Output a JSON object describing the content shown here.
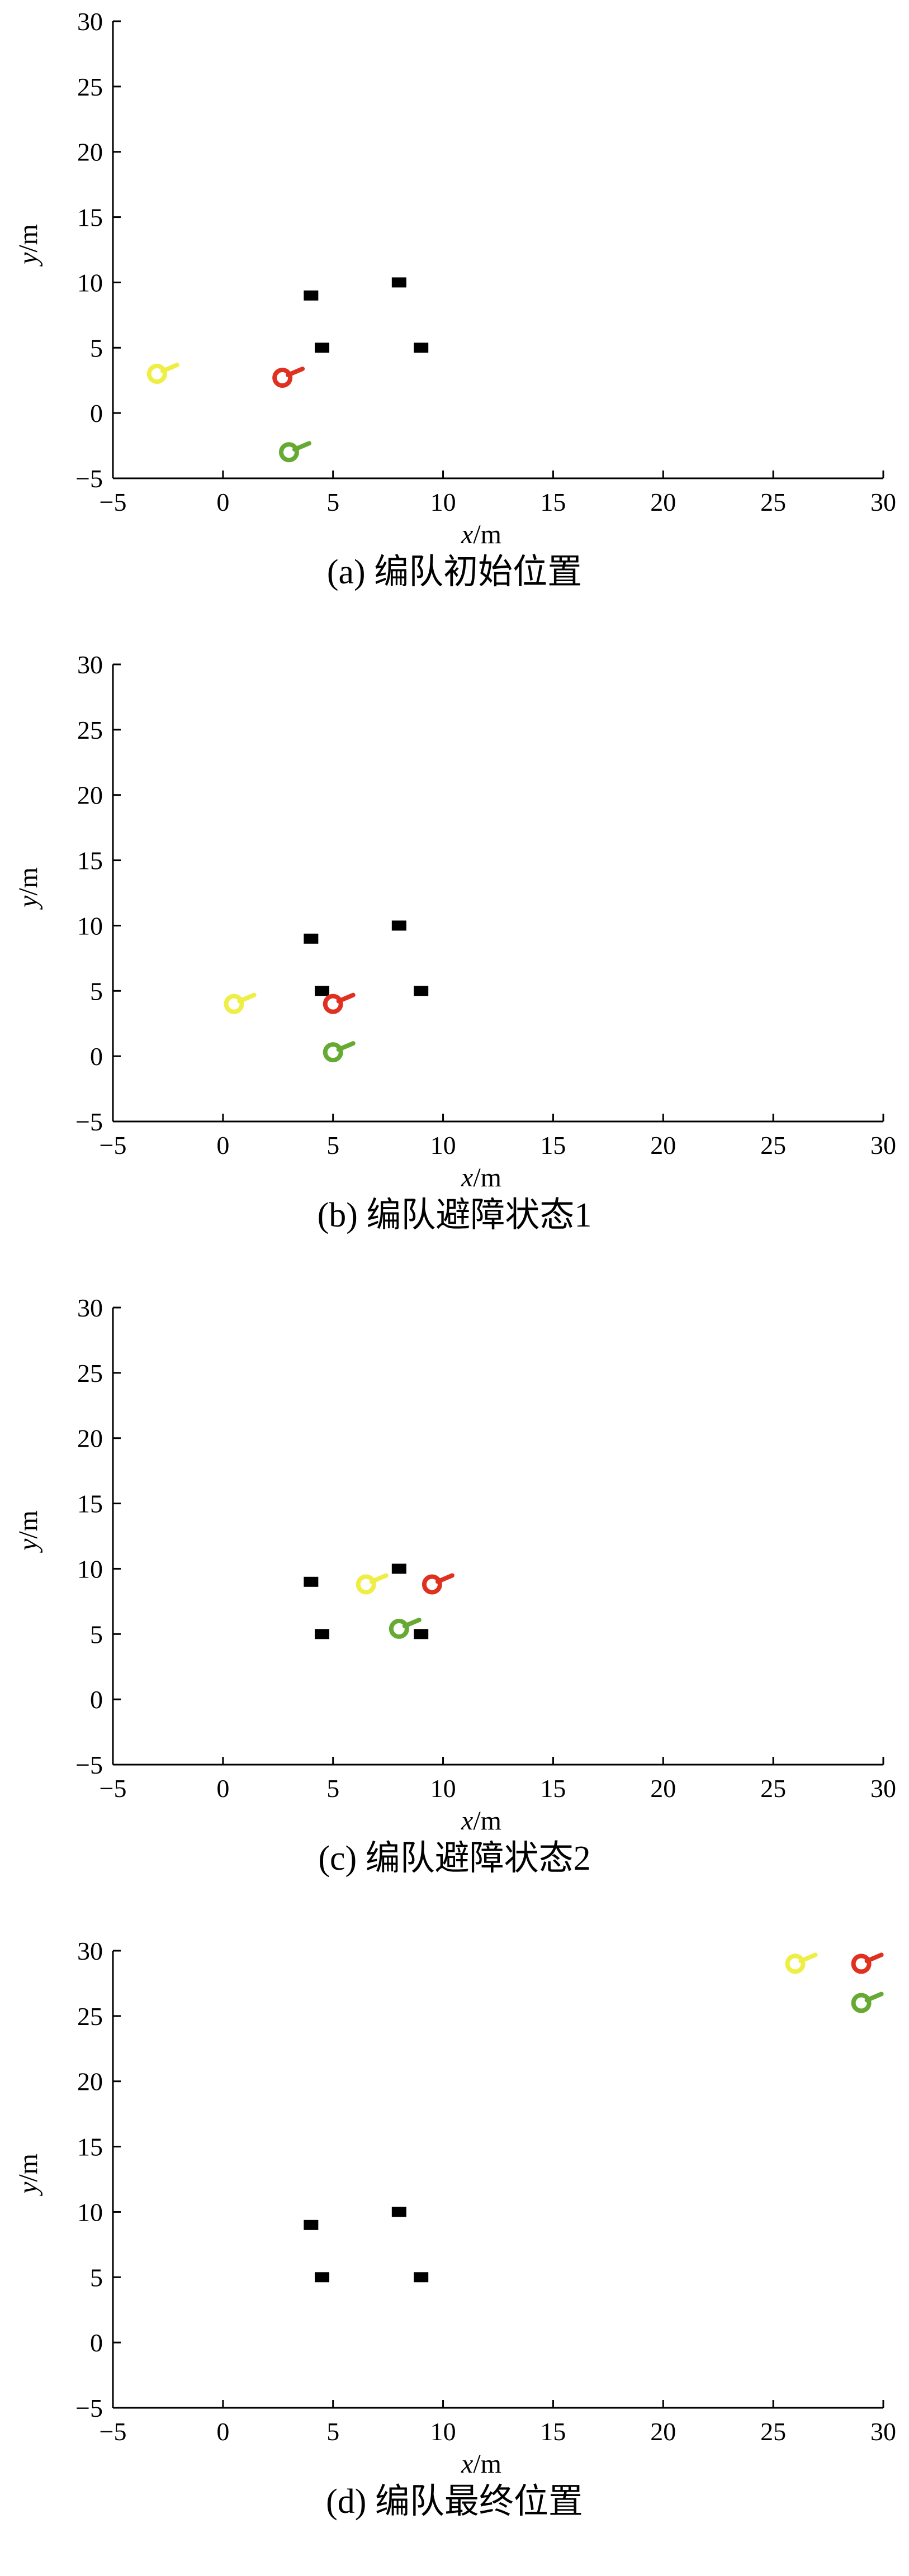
{
  "chart_data": [
    {
      "type": "scatter",
      "caption": "(a)  编队初始位置",
      "xlabel": "x/m",
      "ylabel": "y/m",
      "xlim": [
        -5,
        30
      ],
      "ylim": [
        -5,
        30
      ],
      "xticks": [
        -5,
        0,
        5,
        10,
        15,
        20,
        25,
        30
      ],
      "yticks": [
        -5,
        0,
        5,
        10,
        15,
        20,
        25,
        30
      ],
      "grid": false,
      "series": [
        {
          "kind": "obstacle",
          "color": "#000000",
          "points": [
            [
              4,
              9
            ],
            [
              8,
              10
            ],
            [
              4.5,
              5
            ],
            [
              9,
              5
            ]
          ]
        },
        {
          "kind": "robot",
          "color": "#eeee44",
          "points": [
            [
              -3,
              3
            ]
          ]
        },
        {
          "kind": "robot",
          "color": "#e03020",
          "points": [
            [
              2.7,
              2.7
            ]
          ]
        },
        {
          "kind": "robot",
          "color": "#66aa33",
          "points": [
            [
              3,
              -3
            ]
          ]
        }
      ]
    },
    {
      "type": "scatter",
      "caption": "(b)  编队避障状态1",
      "xlabel": "x/m",
      "ylabel": "y/m",
      "xlim": [
        -5,
        30
      ],
      "ylim": [
        -5,
        30
      ],
      "xticks": [
        -5,
        0,
        5,
        10,
        15,
        20,
        25,
        30
      ],
      "yticks": [
        -5,
        0,
        5,
        10,
        15,
        20,
        25,
        30
      ],
      "grid": false,
      "series": [
        {
          "kind": "obstacle",
          "color": "#000000",
          "points": [
            [
              4,
              9
            ],
            [
              8,
              10
            ],
            [
              4.5,
              5
            ],
            [
              9,
              5
            ]
          ]
        },
        {
          "kind": "robot",
          "color": "#eeee44",
          "points": [
            [
              0.5,
              4
            ]
          ]
        },
        {
          "kind": "robot",
          "color": "#e03020",
          "points": [
            [
              5,
              4
            ]
          ]
        },
        {
          "kind": "robot",
          "color": "#66aa33",
          "points": [
            [
              5,
              0.3
            ]
          ]
        }
      ]
    },
    {
      "type": "scatter",
      "caption": "(c)  编队避障状态2",
      "xlabel": "x/m",
      "ylabel": "y/m",
      "xlim": [
        -5,
        30
      ],
      "ylim": [
        -5,
        30
      ],
      "xticks": [
        -5,
        0,
        5,
        10,
        15,
        20,
        25,
        30
      ],
      "yticks": [
        -5,
        0,
        5,
        10,
        15,
        20,
        25,
        30
      ],
      "grid": false,
      "series": [
        {
          "kind": "obstacle",
          "color": "#000000",
          "points": [
            [
              4,
              9
            ],
            [
              8,
              10
            ],
            [
              4.5,
              5
            ],
            [
              9,
              5
            ]
          ]
        },
        {
          "kind": "robot",
          "color": "#eeee44",
          "points": [
            [
              6.5,
              8.8
            ]
          ]
        },
        {
          "kind": "robot",
          "color": "#e03020",
          "points": [
            [
              9.5,
              8.8
            ]
          ]
        },
        {
          "kind": "robot",
          "color": "#66aa33",
          "points": [
            [
              8,
              5.4
            ]
          ]
        }
      ]
    },
    {
      "type": "scatter",
      "caption": "(d)  编队最终位置",
      "xlabel": "x/m",
      "ylabel": "y/m",
      "xlim": [
        -5,
        30
      ],
      "ylim": [
        -5,
        30
      ],
      "xticks": [
        -5,
        0,
        5,
        10,
        15,
        20,
        25,
        30
      ],
      "yticks": [
        -5,
        0,
        5,
        10,
        15,
        20,
        25,
        30
      ],
      "grid": false,
      "series": [
        {
          "kind": "obstacle",
          "color": "#000000",
          "points": [
            [
              4,
              9
            ],
            [
              8,
              10
            ],
            [
              4.5,
              5
            ],
            [
              9,
              5
            ]
          ]
        },
        {
          "kind": "robot",
          "color": "#eeee44",
          "points": [
            [
              26,
              29
            ]
          ]
        },
        {
          "kind": "robot",
          "color": "#e03020",
          "points": [
            [
              29,
              29
            ]
          ]
        },
        {
          "kind": "robot",
          "color": "#66aa33",
          "points": [
            [
              29,
              26
            ]
          ]
        }
      ]
    }
  ]
}
